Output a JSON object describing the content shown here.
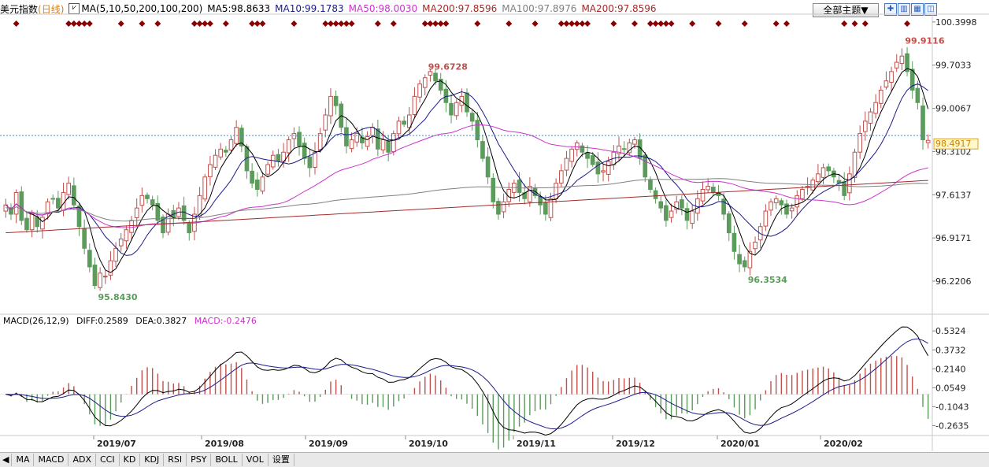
{
  "header": {
    "title": "美元指数",
    "period": "(日线)",
    "ma_params": "MA(5,10,50,200,100,200)",
    "ma5": "MA5:98.8633",
    "ma10": "MA10:99.1783",
    "ma50": "MA50:98.0030",
    "ma200a": "MA200:97.8596",
    "ma100": "MA100:97.8976",
    "ma200b": "MA200:97.8596",
    "theme_button": "全部主题▼"
  },
  "macd_header": {
    "params": "MACD(26,12,9)",
    "diff": "DIFF:0.2589",
    "dea": "DEA:0.3827",
    "macd": "MACD:-0.2476"
  },
  "bottom_tabs": [
    "MA",
    "MACD",
    "ADX",
    "CCI",
    "KD",
    "KDJ",
    "RSI",
    "PSY",
    "BOLL",
    "VOL",
    "设置"
  ],
  "colors": {
    "up": "#c0504d",
    "down": "#5b9b5b",
    "ma5": "#000000",
    "ma10": "#1b1b8a",
    "ma50": "#cc33cc",
    "ma100": "#808080",
    "ma200": "#a52a2a",
    "annotation_high": "#c0504d",
    "annotation_low": "#5b9b5b",
    "marker": "#8b0000"
  },
  "chart_data": [
    {
      "type": "candlestick",
      "price_axis": {
        "ticks": [
          "100.3998",
          "99.7033",
          "99.0067",
          "98.3102",
          "97.6137",
          "96.9171",
          "96.2206"
        ],
        "ylim": [
          95.7,
          100.5
        ]
      },
      "last_price": "98.4917",
      "x_labels": [
        "2019/07",
        "2019/08",
        "2019/09",
        "2019/10",
        "2019/11",
        "2019/12",
        "2020/01",
        "2020/02"
      ],
      "annotations": [
        {
          "text": "99.6728",
          "kind": "high"
        },
        {
          "text": "99.9116",
          "kind": "high"
        },
        {
          "text": "95.8430",
          "kind": "low"
        },
        {
          "text": "96.3534",
          "kind": "low"
        }
      ],
      "close_series": [
        97.45,
        97.3,
        97.65,
        97.2,
        97.05,
        97.3,
        97.1,
        97.25,
        97.5,
        97.55,
        97.4,
        97.65,
        97.8,
        97.45,
        97.1,
        96.75,
        96.45,
        96.15,
        96.35,
        96.3,
        96.55,
        96.75,
        96.9,
        97.05,
        97.2,
        97.4,
        97.6,
        97.55,
        97.45,
        97.2,
        97.0,
        97.3,
        97.25,
        97.4,
        97.2,
        97.0,
        97.3,
        97.6,
        97.9,
        98.1,
        98.25,
        98.35,
        98.3,
        98.5,
        98.7,
        98.4,
        98.0,
        97.8,
        97.7,
        97.9,
        98.1,
        98.25,
        98.15,
        98.3,
        98.5,
        98.6,
        98.4,
        98.2,
        98.05,
        98.3,
        98.6,
        98.9,
        99.2,
        99.05,
        98.7,
        98.4,
        98.5,
        98.6,
        98.45,
        98.55,
        98.7,
        98.35,
        98.5,
        98.3,
        98.6,
        98.8,
        98.75,
        98.9,
        99.2,
        99.4,
        99.5,
        99.6,
        99.45,
        99.3,
        99.1,
        98.9,
        99.1,
        99.2,
        98.95,
        98.8,
        98.5,
        98.2,
        97.9,
        97.5,
        97.3,
        97.5,
        97.7,
        97.8,
        97.65,
        97.55,
        97.75,
        97.6,
        97.45,
        97.3,
        97.55,
        97.8,
        98.0,
        98.2,
        98.35,
        98.45,
        98.3,
        98.2,
        98.1,
        97.95,
        98.0,
        98.15,
        98.3,
        98.4,
        98.35,
        98.45,
        98.5,
        98.2,
        97.9,
        97.7,
        97.55,
        97.4,
        97.2,
        97.35,
        97.5,
        97.4,
        97.2,
        97.35,
        97.55,
        97.7,
        97.75,
        97.65,
        97.6,
        97.3,
        97.0,
        96.7,
        96.5,
        96.45,
        96.7,
        96.85,
        97.1,
        97.35,
        97.5,
        97.55,
        97.45,
        97.3,
        97.4,
        97.6,
        97.7,
        97.75,
        97.85,
        97.95,
        98.05,
        98.0,
        97.9,
        97.8,
        97.6,
        97.95,
        98.3,
        98.6,
        98.8,
        98.95,
        99.1,
        99.3,
        99.45,
        99.6,
        99.75,
        99.85,
        99.6,
        99.3,
        99.1,
        98.5,
        98.49
      ],
      "macd": {
        "ticks": [
          "0.5324",
          "0.3732",
          "0.2140",
          "0.0549",
          "-0.1043",
          "-0.2635"
        ],
        "ylim": [
          -0.34,
          0.6
        ]
      },
      "markers": "diamond signals along the top of the price pane"
    }
  ]
}
